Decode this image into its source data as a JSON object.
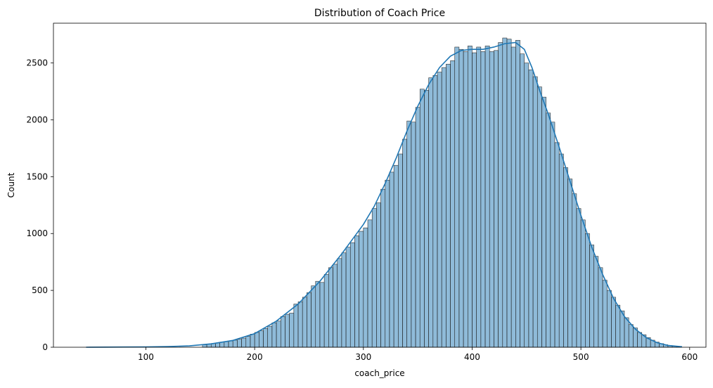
{
  "chart_data": {
    "type": "bar",
    "title": "Distribution of Coach Price",
    "xlabel": "coach_price",
    "ylabel": "Count",
    "xlim": [
      15,
      615
    ],
    "ylim": [
      0,
      2850
    ],
    "xticks": [
      100,
      200,
      300,
      400,
      500,
      600
    ],
    "yticks": [
      0,
      500,
      1000,
      1500,
      2000,
      2500
    ],
    "xtick_labels": [
      "100",
      "200",
      "300",
      "400",
      "500",
      "600"
    ],
    "ytick_labels": [
      "0",
      "500",
      "1000",
      "1500",
      "2000",
      "2500"
    ],
    "grid": false,
    "legend": "none",
    "bar_color": "#1f77b4",
    "kde_color": "#1f77b4",
    "bin_width": 3.97,
    "bins": [
      {
        "x": 154,
        "count": 22
      },
      {
        "x": 158,
        "count": 27
      },
      {
        "x": 162,
        "count": 33
      },
      {
        "x": 166,
        "count": 38
      },
      {
        "x": 170,
        "count": 45
      },
      {
        "x": 174,
        "count": 50
      },
      {
        "x": 178,
        "count": 55
      },
      {
        "x": 182,
        "count": 62
      },
      {
        "x": 186,
        "count": 70
      },
      {
        "x": 190,
        "count": 80
      },
      {
        "x": 194,
        "count": 95
      },
      {
        "x": 198,
        "count": 115
      },
      {
        "x": 202,
        "count": 130
      },
      {
        "x": 206,
        "count": 145
      },
      {
        "x": 210,
        "count": 165
      },
      {
        "x": 214,
        "count": 185
      },
      {
        "x": 218,
        "count": 215
      },
      {
        "x": 222,
        "count": 230
      },
      {
        "x": 226,
        "count": 270
      },
      {
        "x": 230,
        "count": 290
      },
      {
        "x": 234,
        "count": 300
      },
      {
        "x": 238,
        "count": 380
      },
      {
        "x": 242,
        "count": 400
      },
      {
        "x": 246,
        "count": 440
      },
      {
        "x": 250,
        "count": 480
      },
      {
        "x": 254,
        "count": 540
      },
      {
        "x": 258,
        "count": 580
      },
      {
        "x": 262,
        "count": 570
      },
      {
        "x": 266,
        "count": 640
      },
      {
        "x": 270,
        "count": 700
      },
      {
        "x": 274,
        "count": 730
      },
      {
        "x": 278,
        "count": 780
      },
      {
        "x": 282,
        "count": 830
      },
      {
        "x": 286,
        "count": 880
      },
      {
        "x": 290,
        "count": 920
      },
      {
        "x": 294,
        "count": 980
      },
      {
        "x": 298,
        "count": 1020
      },
      {
        "x": 302,
        "count": 1050
      },
      {
        "x": 306,
        "count": 1120
      },
      {
        "x": 310,
        "count": 1220
      },
      {
        "x": 314,
        "count": 1270
      },
      {
        "x": 318,
        "count": 1390
      },
      {
        "x": 322,
        "count": 1470
      },
      {
        "x": 326,
        "count": 1540
      },
      {
        "x": 330,
        "count": 1600
      },
      {
        "x": 334,
        "count": 1700
      },
      {
        "x": 338,
        "count": 1830
      },
      {
        "x": 342,
        "count": 1990
      },
      {
        "x": 346,
        "count": 1980
      },
      {
        "x": 350,
        "count": 2110
      },
      {
        "x": 354,
        "count": 2270
      },
      {
        "x": 358,
        "count": 2260
      },
      {
        "x": 362,
        "count": 2370
      },
      {
        "x": 366,
        "count": 2390
      },
      {
        "x": 370,
        "count": 2420
      },
      {
        "x": 374,
        "count": 2460
      },
      {
        "x": 378,
        "count": 2490
      },
      {
        "x": 382,
        "count": 2520
      },
      {
        "x": 386,
        "count": 2640
      },
      {
        "x": 390,
        "count": 2620
      },
      {
        "x": 394,
        "count": 2600
      },
      {
        "x": 398,
        "count": 2650
      },
      {
        "x": 402,
        "count": 2590
      },
      {
        "x": 406,
        "count": 2640
      },
      {
        "x": 410,
        "count": 2600
      },
      {
        "x": 414,
        "count": 2650
      },
      {
        "x": 418,
        "count": 2600
      },
      {
        "x": 422,
        "count": 2610
      },
      {
        "x": 426,
        "count": 2680
      },
      {
        "x": 430,
        "count": 2720
      },
      {
        "x": 434,
        "count": 2710
      },
      {
        "x": 438,
        "count": 2640
      },
      {
        "x": 442,
        "count": 2700
      },
      {
        "x": 446,
        "count": 2580
      },
      {
        "x": 450,
        "count": 2500
      },
      {
        "x": 454,
        "count": 2440
      },
      {
        "x": 458,
        "count": 2380
      },
      {
        "x": 462,
        "count": 2290
      },
      {
        "x": 466,
        "count": 2200
      },
      {
        "x": 470,
        "count": 2060
      },
      {
        "x": 474,
        "count": 1980
      },
      {
        "x": 478,
        "count": 1800
      },
      {
        "x": 482,
        "count": 1700
      },
      {
        "x": 486,
        "count": 1580
      },
      {
        "x": 490,
        "count": 1480
      },
      {
        "x": 494,
        "count": 1350
      },
      {
        "x": 498,
        "count": 1220
      },
      {
        "x": 502,
        "count": 1120
      },
      {
        "x": 506,
        "count": 1000
      },
      {
        "x": 510,
        "count": 900
      },
      {
        "x": 514,
        "count": 800
      },
      {
        "x": 518,
        "count": 700
      },
      {
        "x": 522,
        "count": 590
      },
      {
        "x": 526,
        "count": 500
      },
      {
        "x": 530,
        "count": 440
      },
      {
        "x": 534,
        "count": 370
      },
      {
        "x": 538,
        "count": 320
      },
      {
        "x": 542,
        "count": 260
      },
      {
        "x": 546,
        "count": 200
      },
      {
        "x": 550,
        "count": 170
      },
      {
        "x": 554,
        "count": 130
      },
      {
        "x": 558,
        "count": 110
      },
      {
        "x": 562,
        "count": 85
      },
      {
        "x": 566,
        "count": 62
      },
      {
        "x": 570,
        "count": 45
      },
      {
        "x": 574,
        "count": 32
      },
      {
        "x": 578,
        "count": 22
      },
      {
        "x": 582,
        "count": 15
      },
      {
        "x": 586,
        "count": 10
      },
      {
        "x": 590,
        "count": 6
      }
    ],
    "kde": [
      {
        "x": 45,
        "y": 0
      },
      {
        "x": 80,
        "y": 2
      },
      {
        "x": 100,
        "y": 3
      },
      {
        "x": 120,
        "y": 6
      },
      {
        "x": 140,
        "y": 12
      },
      {
        "x": 160,
        "y": 30
      },
      {
        "x": 180,
        "y": 60
      },
      {
        "x": 200,
        "y": 120
      },
      {
        "x": 220,
        "y": 230
      },
      {
        "x": 240,
        "y": 380
      },
      {
        "x": 260,
        "y": 580
      },
      {
        "x": 280,
        "y": 820
      },
      {
        "x": 300,
        "y": 1080
      },
      {
        "x": 310,
        "y": 1240
      },
      {
        "x": 320,
        "y": 1440
      },
      {
        "x": 330,
        "y": 1660
      },
      {
        "x": 340,
        "y": 1900
      },
      {
        "x": 350,
        "y": 2120
      },
      {
        "x": 360,
        "y": 2310
      },
      {
        "x": 370,
        "y": 2460
      },
      {
        "x": 380,
        "y": 2560
      },
      {
        "x": 390,
        "y": 2610
      },
      {
        "x": 400,
        "y": 2620
      },
      {
        "x": 410,
        "y": 2620
      },
      {
        "x": 420,
        "y": 2640
      },
      {
        "x": 430,
        "y": 2670
      },
      {
        "x": 440,
        "y": 2680
      },
      {
        "x": 448,
        "y": 2620
      },
      {
        "x": 455,
        "y": 2460
      },
      {
        "x": 462,
        "y": 2260
      },
      {
        "x": 470,
        "y": 2050
      },
      {
        "x": 480,
        "y": 1760
      },
      {
        "x": 490,
        "y": 1460
      },
      {
        "x": 500,
        "y": 1160
      },
      {
        "x": 510,
        "y": 880
      },
      {
        "x": 520,
        "y": 640
      },
      {
        "x": 530,
        "y": 430
      },
      {
        "x": 540,
        "y": 270
      },
      {
        "x": 550,
        "y": 160
      },
      {
        "x": 560,
        "y": 85
      },
      {
        "x": 570,
        "y": 40
      },
      {
        "x": 580,
        "y": 16
      },
      {
        "x": 593,
        "y": 4
      }
    ]
  }
}
